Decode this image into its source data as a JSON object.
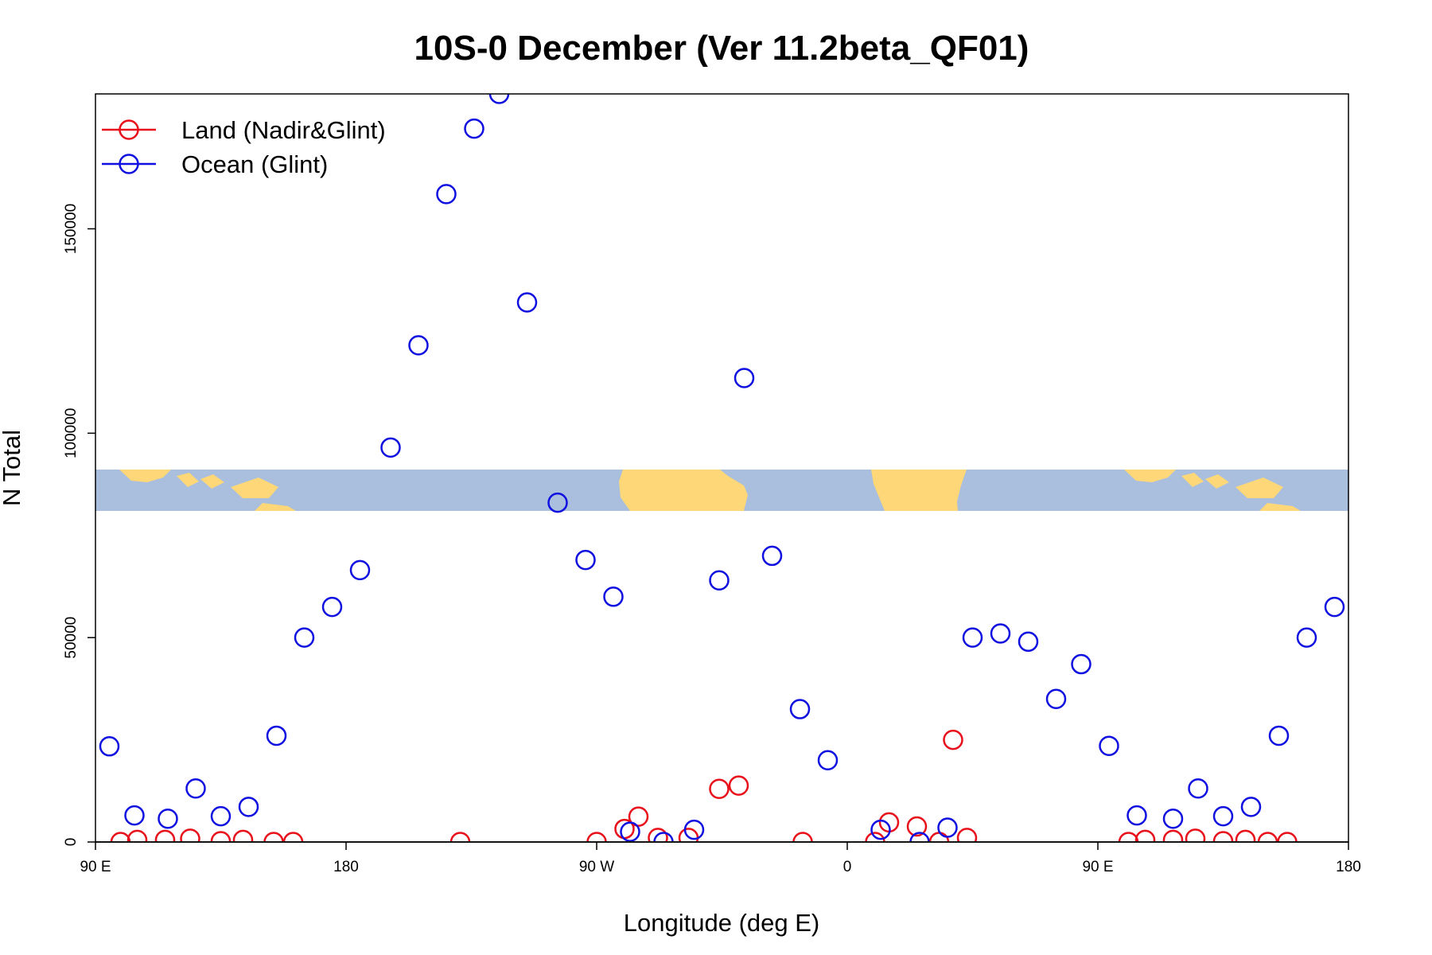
{
  "chart_data": {
    "type": "scatter",
    "title": "10S-0 December (Ver 11.2beta_QF01)",
    "xlabel": "Longitude (deg E)",
    "ylabel": "N Total",
    "xlim": [
      90,
      540
    ],
    "ylim": [
      0,
      183000
    ],
    "x_ticks": [
      {
        "value": 90,
        "label": "90 E"
      },
      {
        "value": 180,
        "label": "180"
      },
      {
        "value": 270,
        "label": "90 W"
      },
      {
        "value": 360,
        "label": "0"
      },
      {
        "value": 450,
        "label": "90 E"
      },
      {
        "value": 540,
        "label": "180"
      }
    ],
    "y_ticks": [
      {
        "value": 0,
        "label": "0"
      },
      {
        "value": 50000,
        "label": "50000"
      },
      {
        "value": 100000,
        "label": "100000"
      },
      {
        "value": 150000,
        "label": "150000"
      }
    ],
    "grid": false,
    "legend_position": "top-left",
    "inset_map": {
      "description_hidden": true,
      "ocean_color": "#a9bfdd",
      "land_color": "#fdd778"
    },
    "series": [
      {
        "name": "Land (Nadir&Glint)",
        "color": "#e8101a",
        "points": [
          [
            99,
            0
          ],
          [
            105,
            500
          ],
          [
            115,
            500
          ],
          [
            124,
            800
          ],
          [
            135,
            200
          ],
          [
            143,
            500
          ],
          [
            154,
            0
          ],
          [
            161,
            0
          ],
          [
            221,
            0
          ],
          [
            270,
            0
          ],
          [
            280,
            3200
          ],
          [
            285,
            6200
          ],
          [
            292,
            1000
          ],
          [
            303,
            1000
          ],
          [
            314,
            13000
          ],
          [
            321,
            13800
          ],
          [
            344,
            0
          ],
          [
            370,
            0
          ],
          [
            375,
            4800
          ],
          [
            385,
            3800
          ],
          [
            393,
            0
          ],
          [
            398,
            25000
          ],
          [
            403,
            1000
          ],
          [
            461,
            0
          ],
          [
            467,
            500
          ],
          [
            477,
            500
          ],
          [
            485,
            800
          ],
          [
            495,
            200
          ],
          [
            503,
            500
          ],
          [
            511,
            0
          ],
          [
            518,
            0
          ]
        ]
      },
      {
        "name": "Ocean (Glint)",
        "color": "#1010e0",
        "points": [
          [
            95,
            23400
          ],
          [
            104,
            6500
          ],
          [
            116,
            5700
          ],
          [
            126,
            13100
          ],
          [
            135,
            6300
          ],
          [
            145,
            8600
          ],
          [
            155,
            26000
          ],
          [
            165,
            50000
          ],
          [
            175,
            57500
          ],
          [
            185,
            66500
          ],
          [
            196,
            96500
          ],
          [
            206,
            121500
          ],
          [
            216,
            158500
          ],
          [
            226,
            174500
          ],
          [
            235,
            183000
          ],
          [
            245,
            132000
          ],
          [
            256,
            83000
          ],
          [
            266,
            69000
          ],
          [
            276,
            60000
          ],
          [
            282,
            2500
          ],
          [
            294,
            0
          ],
          [
            305,
            3000
          ],
          [
            314,
            64000
          ],
          [
            323,
            113500
          ],
          [
            333,
            70000
          ],
          [
            343,
            32500
          ],
          [
            353,
            20000
          ],
          [
            372,
            3000
          ],
          [
            386,
            0
          ],
          [
            396,
            3500
          ],
          [
            405,
            50000
          ],
          [
            415,
            51000
          ],
          [
            425,
            49000
          ],
          [
            435,
            35000
          ],
          [
            444,
            43500
          ],
          [
            454,
            23500
          ],
          [
            464,
            6500
          ],
          [
            477,
            5700
          ],
          [
            486,
            13100
          ],
          [
            495,
            6300
          ],
          [
            505,
            8600
          ],
          [
            515,
            26000
          ],
          [
            525,
            50000
          ],
          [
            535,
            57500
          ]
        ]
      }
    ]
  }
}
